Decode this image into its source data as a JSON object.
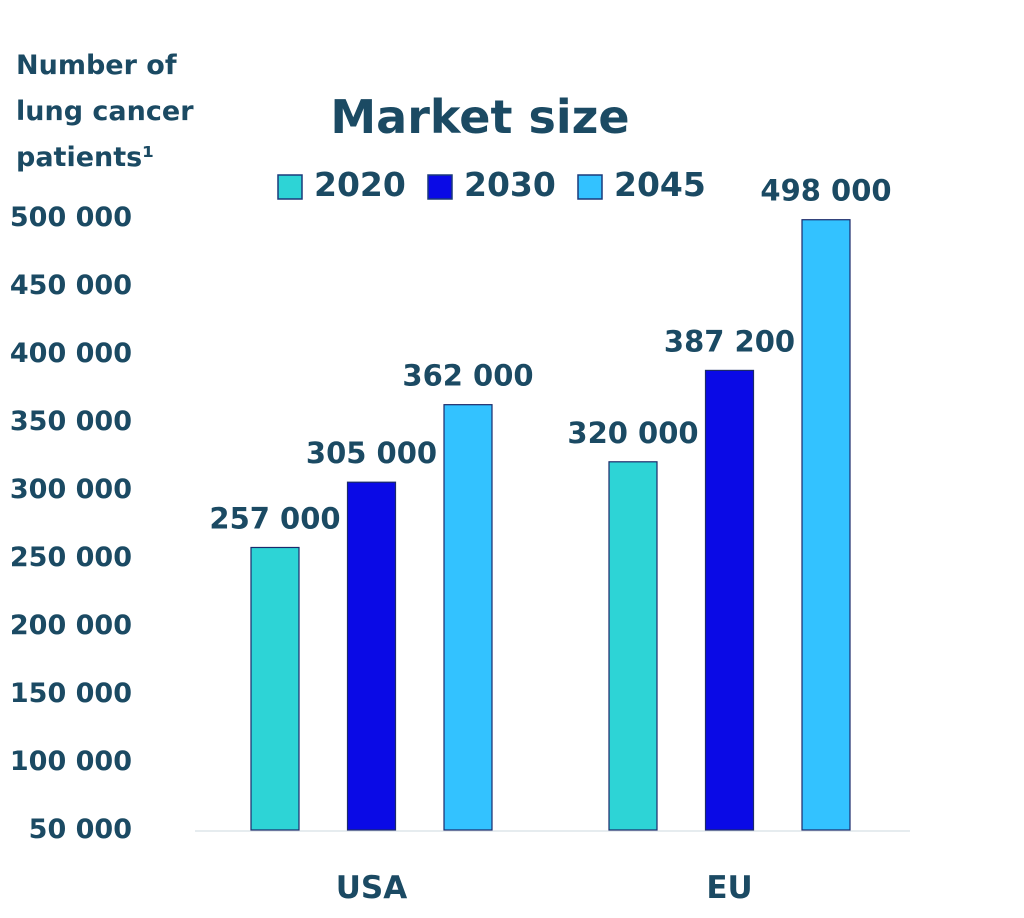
{
  "chart_data": {
    "type": "bar",
    "title": "Market size",
    "ylabel_lines": [
      "Number of",
      "lung cancer",
      "patients¹"
    ],
    "xlabel": "",
    "categories": [
      "USA",
      "EU"
    ],
    "series": [
      {
        "name": "2020",
        "color": "#2dd4d6",
        "values": [
          257000,
          320000
        ],
        "labels": [
          "257 000",
          "320 000"
        ]
      },
      {
        "name": "2030",
        "color": "#0a0ae6",
        "values": [
          305000,
          387200
        ],
        "labels": [
          "305 000",
          "387 200"
        ]
      },
      {
        "name": "2045",
        "color": "#33c2ff",
        "values": [
          362000,
          498000
        ],
        "labels": [
          "362 000",
          "498 000"
        ]
      }
    ],
    "yticks": [
      50000,
      100000,
      150000,
      200000,
      250000,
      300000,
      350000,
      400000,
      450000,
      500000
    ],
    "ytick_labels": [
      "50 000",
      "100 000",
      "150 000",
      "200 000",
      "250 000",
      "300 000",
      "350 000",
      "400 000",
      "450 000",
      "500 000"
    ],
    "ylim": [
      50000,
      500000
    ],
    "grid": false,
    "legend_position": "top-center"
  }
}
